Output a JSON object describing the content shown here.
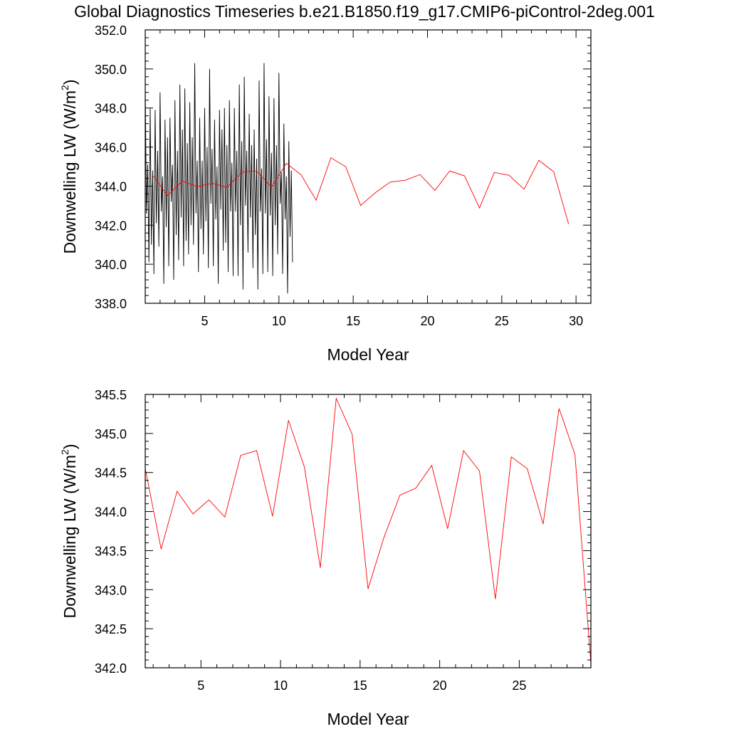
{
  "title": "Global Diagnostics Timeseries b.e21.B1850.f19_g17.CMIP6-piControl-2deg.001",
  "colors": {
    "monthly_line": "#000000",
    "annual_line": "#ff0000",
    "axis": "#000000"
  },
  "chart_data": [
    {
      "type": "line",
      "title": "",
      "xlabel": "Model Year",
      "ylabel_main": "Downwelling LW (W/m",
      "ylabel_sup": "2",
      "ylabel_end": ")",
      "xlim": [
        1,
        31
      ],
      "ylim": [
        338,
        352
      ],
      "xticks": [
        5,
        10,
        15,
        20,
        25,
        30
      ],
      "yticks": [
        "338.0",
        "340.0",
        "342.0",
        "344.0",
        "346.0",
        "348.0",
        "350.0",
        "352.0"
      ],
      "series": [
        {
          "color": "#000000",
          "resolution": "monthly",
          "x_start": 1.0,
          "x_step": 0.08333,
          "values": [
            349.0,
            342.6,
            345.1,
            340.1,
            348.0,
            341.0,
            344.8,
            339.5,
            347.9,
            342.1,
            345.8,
            340.9,
            348.8,
            342.7,
            344.5,
            339.0,
            347.4,
            341.9,
            346.5,
            339.9,
            347.5,
            343.2,
            345.1,
            339.2,
            348.4,
            341.5,
            345.8,
            340.2,
            349.2,
            342.4,
            346.9,
            339.9,
            349.0,
            341.2,
            346.2,
            340.5,
            348.3,
            342.0,
            346.5,
            341.0,
            350.3,
            342.6,
            345.3,
            339.6,
            347.5,
            341.8,
            345.3,
            340.5,
            348.0,
            342.2,
            346.0,
            339.8,
            350.0,
            343.1,
            345.9,
            339.9,
            347.4,
            342.3,
            345.0,
            339.0,
            347.9,
            342.8,
            346.9,
            340.7,
            348.0,
            341.1,
            346.1,
            339.6,
            348.4,
            342.7,
            345.2,
            339.4,
            348.0,
            342.7,
            345.8,
            339.4,
            349.2,
            342.0,
            346.3,
            338.7,
            349.6,
            343.0,
            345.8,
            340.6,
            347.7,
            342.4,
            346.1,
            339.8,
            346.9,
            341.5,
            345.4,
            338.7,
            349.4,
            342.7,
            344.9,
            339.5,
            350.3,
            342.6,
            346.4,
            339.6,
            348.6,
            342.5,
            345.7,
            339.4,
            348.5,
            342.0,
            346.1,
            340.5,
            349.8,
            343.1,
            344.7,
            339.5,
            347.2,
            342.3,
            344.5,
            338.5,
            346.3,
            341.4,
            344.8,
            340.1
          ]
        },
        {
          "color": "#ff0000",
          "resolution": "annual",
          "x": [
            1.5,
            2.5,
            3.5,
            4.5,
            5.5,
            6.5,
            7.5,
            8.5,
            9.5,
            10.5,
            11.5,
            12.5,
            13.5,
            14.5,
            15.5,
            16.5,
            17.5,
            18.5,
            19.5,
            20.5,
            21.5,
            22.5,
            23.5,
            24.5,
            25.5,
            26.5,
            27.5,
            28.5,
            29.5
          ],
          "values": [
            344.55,
            343.52,
            344.26,
            343.97,
            344.15,
            343.93,
            344.72,
            344.78,
            343.94,
            345.17,
            344.57,
            343.28,
            345.45,
            344.99,
            343.01,
            343.67,
            344.21,
            344.3,
            344.59,
            343.78,
            344.78,
            344.52,
            342.88,
            344.7,
            344.55,
            343.84,
            345.32,
            344.73,
            342.05
          ]
        }
      ]
    },
    {
      "type": "line",
      "title": "",
      "xlabel": "Model Year",
      "ylabel_main": "Downwelling LW (W/m",
      "ylabel_sup": "2",
      "ylabel_end": ")",
      "xlim": [
        1.5,
        29.5
      ],
      "ylim": [
        342.0,
        345.5
      ],
      "xticks": [
        5,
        10,
        15,
        20,
        25
      ],
      "yticks": [
        "342.0",
        "342.5",
        "343.0",
        "343.5",
        "344.0",
        "344.5",
        "345.0",
        "345.5"
      ],
      "series": [
        {
          "color": "#ff0000",
          "resolution": "annual",
          "x": [
            1.5,
            2.5,
            3.5,
            4.5,
            5.5,
            6.5,
            7.5,
            8.5,
            9.5,
            10.5,
            11.5,
            12.5,
            13.5,
            14.5,
            15.5,
            16.5,
            17.5,
            18.5,
            19.5,
            20.5,
            21.5,
            22.5,
            23.5,
            24.5,
            25.5,
            26.5,
            27.5,
            28.5,
            29.5
          ],
          "values": [
            344.55,
            343.52,
            344.26,
            343.97,
            344.15,
            343.93,
            344.72,
            344.78,
            343.94,
            345.17,
            344.57,
            343.28,
            345.45,
            344.99,
            343.01,
            343.67,
            344.21,
            344.3,
            344.59,
            343.78,
            344.78,
            344.52,
            342.88,
            344.7,
            344.55,
            343.84,
            345.32,
            344.73,
            342.05
          ]
        }
      ]
    }
  ]
}
